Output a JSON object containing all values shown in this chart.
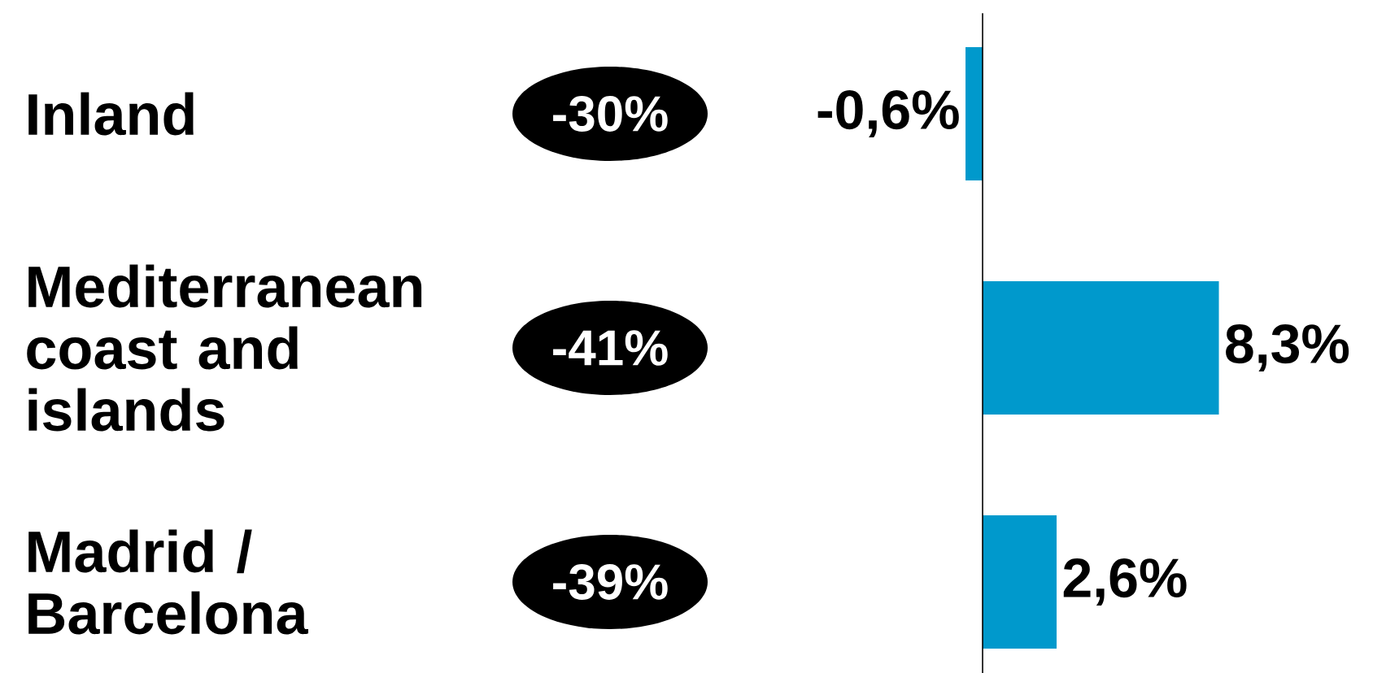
{
  "chart_data": {
    "type": "bar",
    "orientation": "horizontal",
    "categories": [
      "Inland",
      "Mediterranean coast and islands",
      "Madrid / Barcelona"
    ],
    "values": [
      -0.6,
      8.3,
      2.6
    ],
    "value_labels": [
      "-0,6%",
      "8,3%",
      "2,6%"
    ],
    "color": "#0099cc",
    "annotations": [
      "-30%",
      "-41%",
      "-39%"
    ]
  }
}
